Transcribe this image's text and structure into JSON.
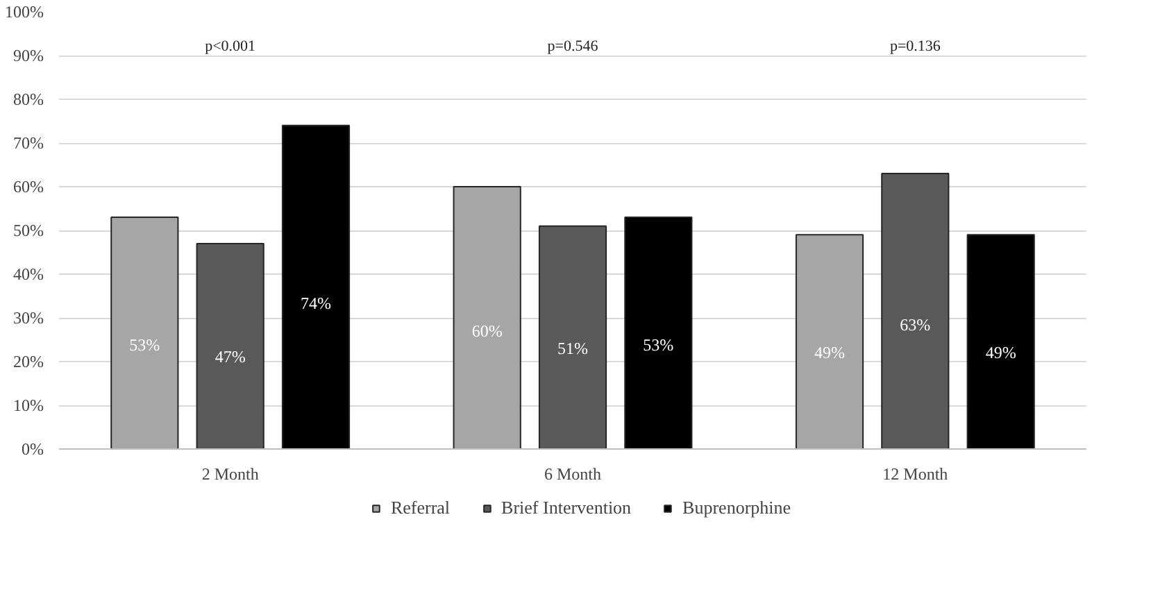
{
  "chart_data": {
    "type": "bar",
    "categories": [
      "2 Month",
      "6 Month",
      "12 Month"
    ],
    "series": [
      {
        "name": "Referral",
        "color": "#a6a6a6",
        "values": [
          53,
          60,
          49
        ],
        "value_labels": [
          "53%",
          "60%",
          "49%"
        ]
      },
      {
        "name": "Brief Intervention",
        "color": "#595959",
        "values": [
          47,
          51,
          63
        ],
        "value_labels": [
          "47%",
          "51%",
          "63%"
        ]
      },
      {
        "name": "Buprenorphine",
        "color": "#000000",
        "values": [
          74,
          53,
          49
        ],
        "value_labels": [
          "74%",
          "53%",
          "49%"
        ]
      }
    ],
    "ylim": [
      0,
      100
    ],
    "yticks": [
      {
        "value": 0,
        "label": "0%"
      },
      {
        "value": 10,
        "label": "10%"
      },
      {
        "value": 20,
        "label": "20%"
      },
      {
        "value": 30,
        "label": "30%"
      },
      {
        "value": 40,
        "label": "40%"
      },
      {
        "value": 50,
        "label": "50%"
      },
      {
        "value": 60,
        "label": "60%"
      },
      {
        "value": 70,
        "label": "70%"
      },
      {
        "value": 80,
        "label": "80%"
      },
      {
        "value": 90,
        "label": "90%"
      },
      {
        "value": 100,
        "label": "100%"
      }
    ],
    "annotations": [
      "p<0.001",
      "p=0.546",
      "p=0.136"
    ],
    "grid": "y",
    "legend": "bottom"
  }
}
